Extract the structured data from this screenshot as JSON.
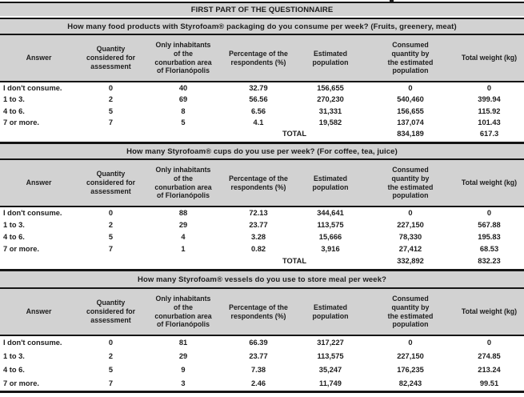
{
  "title": "FIRST PART OF THE QUESTIONNAIRE",
  "total_label": "TOTAL",
  "colors": {
    "band_gray": "#d2d2d2",
    "rule_black": "#151515",
    "text": "#1c1c1c",
    "row_background": "#ffffff"
  },
  "columns": [
    "Answer",
    "Quantity\nconsidered for\nassessment",
    "Only inhabitants\nof the\nconurbation area\nof Florianópolis",
    "Percentage of the\nrespondents (%)",
    "Estimated\npopulation",
    "Consumed\nquantity by\nthe estimated\npopulation",
    "Total weight (kg)"
  ],
  "sections": [
    {
      "question": "How many food products with Styrofoam® packaging do you consume per week? (Fruits, greenery, meat)",
      "rows": [
        [
          "I don't consume.",
          "0",
          "40",
          "32.79",
          "156,655",
          "0",
          "0"
        ],
        [
          "1 to 3.",
          "2",
          "69",
          "56.56",
          "270,230",
          "540,460",
          "399.94"
        ],
        [
          "4 to 6.",
          "5",
          "8",
          "6.56",
          "31,331",
          "156,655",
          "115.92"
        ],
        [
          "7 or more.",
          "7",
          "5",
          "4.1",
          "19,582",
          "137,074",
          "101.43"
        ]
      ],
      "total": {
        "consumed": "834,189",
        "weight": "617.3"
      }
    },
    {
      "question": "How many Styrofoam® cups do you use per week? (For coffee, tea, juice)",
      "rows": [
        [
          "I don't consume.",
          "0",
          "88",
          "72.13",
          "344,641",
          "0",
          "0"
        ],
        [
          "1 to 3.",
          "2",
          "29",
          "23.77",
          "113,575",
          "227,150",
          "567.88"
        ],
        [
          "4 to 6.",
          "5",
          "4",
          "3.28",
          "15,666",
          "78,330",
          "195.83"
        ],
        [
          "7 or more.",
          "7",
          "1",
          "0.82",
          "3,916",
          "27,412",
          "68.53"
        ]
      ],
      "total": {
        "consumed": "332,892",
        "weight": "832.23"
      }
    },
    {
      "question": "How many Styrofoam® vessels do you use to store meal per week?",
      "rows": [
        [
          "I don't consume.",
          "0",
          "81",
          "66.39",
          "317,227",
          "0",
          "0"
        ],
        [
          "1 to 3.",
          "2",
          "29",
          "23.77",
          "113,575",
          "227,150",
          "274.85"
        ],
        [
          "4 to 6.",
          "5",
          "9",
          "7.38",
          "35,247",
          "176,235",
          "213.24"
        ],
        [
          "7 or more.",
          "7",
          "3",
          "2.46",
          "11,749",
          "82,243",
          "99.51"
        ]
      ],
      "total": null
    }
  ]
}
